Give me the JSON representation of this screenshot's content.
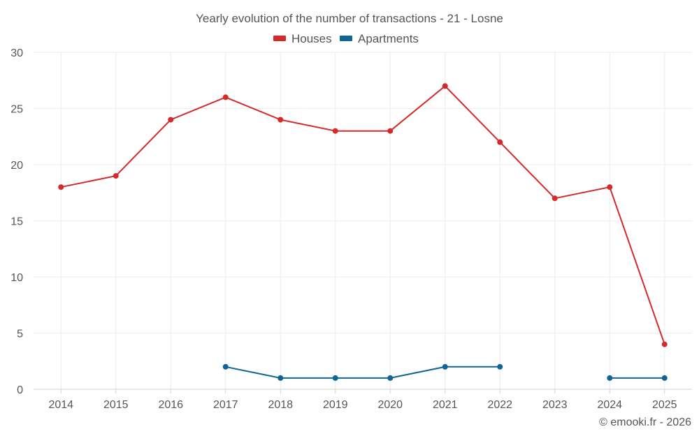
{
  "chart_data": {
    "type": "line",
    "title": "Yearly evolution of the number of transactions - 21 - Losne",
    "categories": [
      "2014",
      "2015",
      "2016",
      "2017",
      "2018",
      "2019",
      "2020",
      "2021",
      "2022",
      "2023",
      "2024",
      "2025"
    ],
    "series": [
      {
        "name": "Houses",
        "color": "#d42a2a",
        "values": [
          18,
          19,
          24,
          26,
          24,
          23,
          23,
          27,
          22,
          17,
          18,
          4
        ]
      },
      {
        "name": "Apartments",
        "color": "#0f6696",
        "values": [
          null,
          null,
          null,
          2,
          1,
          1,
          1,
          2,
          2,
          null,
          1,
          1
        ]
      }
    ],
    "ylim": [
      0,
      30
    ],
    "yticks": [
      0,
      5,
      10,
      15,
      20,
      25,
      30
    ],
    "xlabel": "",
    "ylabel": "",
    "grid": true,
    "legend": "top-center"
  },
  "credit": "© emooki.fr - 2026"
}
